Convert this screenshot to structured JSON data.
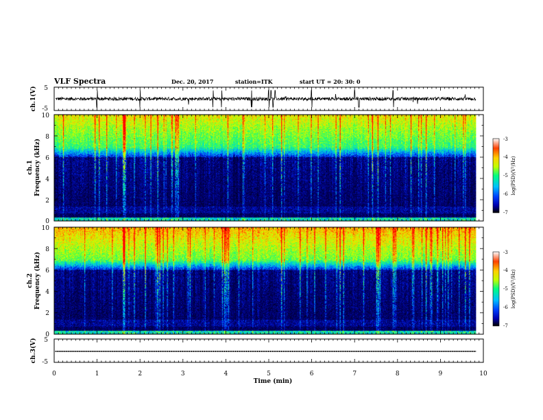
{
  "header": {
    "title": "VLF Spectra",
    "date": "Dec. 20, 2017",
    "station": "station=ITK",
    "start": "start  UT =   20: 30: 0"
  },
  "chart_data": [
    {
      "panel": "ch1-waveform",
      "type": "line",
      "ylabel": "ch.1(V)",
      "ylim": [
        -5,
        5
      ],
      "yticks": [
        "5",
        "-5"
      ],
      "baseline_volts": 0,
      "spike_times_min": [
        1.0,
        2.0,
        3.7,
        3.9,
        4.6,
        5.0,
        5.05,
        5.1,
        5.15,
        6.0,
        7.0,
        7.1,
        7.9
      ]
    },
    {
      "panel": "ch1-spectrogram",
      "type": "heatmap",
      "ylabel": "ch.1\nFrequency  (kHz)",
      "ylim": [
        0,
        10
      ],
      "yticks": [
        "0",
        "2",
        "4",
        "6",
        "8",
        "10"
      ],
      "colorbar": {
        "label": "log(PSD)(V²/Hz)",
        "range": [
          -7,
          -3
        ],
        "ticks": [
          "-3",
          "-4",
          "-5",
          "-6",
          "-7"
        ]
      },
      "colormap": [
        "#000000",
        "#0000b0",
        "#0040ff",
        "#00c0ff",
        "#00ff80",
        "#c0ff00",
        "#ffd000",
        "#ff4000",
        "#ff0000"
      ],
      "noise_floor_top_khz": 6.0,
      "strong_emission_min_khz": 7.0
    },
    {
      "panel": "ch2-spectrogram",
      "type": "heatmap",
      "ylabel": "ch.2\nFrequency  (kHz)",
      "ylim": [
        0,
        10
      ],
      "yticks": [
        "0",
        "2",
        "4",
        "6",
        "8",
        "10"
      ],
      "colorbar": {
        "label": "log(PSD)(V²/Hz)",
        "range": [
          -7,
          -3
        ],
        "ticks": [
          "-3",
          "-4",
          "-5",
          "-6",
          "-7"
        ]
      },
      "colormap": [
        "#000000",
        "#0000b0",
        "#0040ff",
        "#00c0ff",
        "#00ff80",
        "#c0ff00",
        "#ffd000",
        "#ff4000",
        "#ff0000"
      ],
      "noise_floor_top_khz": 6.0,
      "strong_emission_min_khz": 7.0
    },
    {
      "panel": "ch3-waveform",
      "type": "line",
      "ylabel": "ch.3(V)",
      "ylim": [
        -5,
        5
      ],
      "yticks": [
        "5",
        "-5"
      ],
      "baseline_volts": 0
    }
  ],
  "x_axis": {
    "label": "Time  (min)",
    "range": [
      0,
      10
    ],
    "data_end": 9.83,
    "ticks": [
      "0",
      "1",
      "2",
      "3",
      "4",
      "5",
      "6",
      "7",
      "8",
      "9",
      "10"
    ]
  }
}
